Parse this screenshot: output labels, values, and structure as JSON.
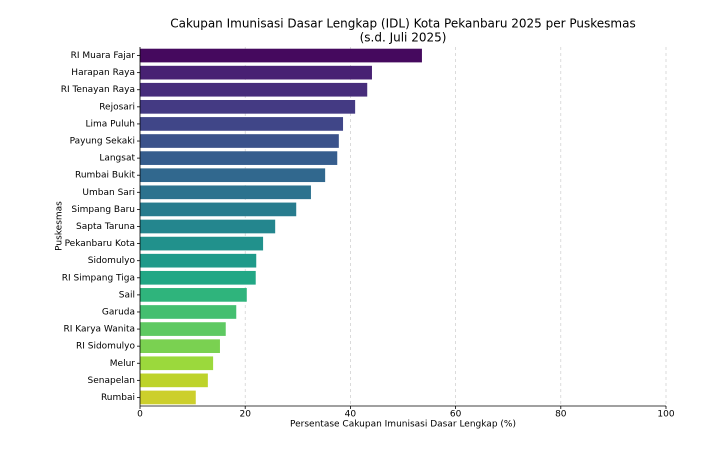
{
  "chart_data": {
    "type": "barh",
    "title": "Cakupan Imunisasi Dasar Lengkap (IDL) Kota Pekanbaru 2025 per Puskesmas",
    "subtitle": "(s.d. Juli 2025)",
    "x_label": "Persentase Cakupan Imunisasi Dasar Lengkap (%)",
    "y_label": "Puskesmas",
    "categories": [
      "RI Muara Fajar",
      "Harapan Raya",
      "RI Tenayan Raya",
      "Rejosari",
      "Lima Puluh",
      "Payung Sekaki",
      "Langsat",
      "Rumbai Bukit",
      "Umban Sari",
      "Simpang Baru",
      "Sapta Taruna",
      "Pekanbaru Kota",
      "Sidomulyo",
      "RI Simpang Tiga",
      "Sail",
      "Garuda",
      "RI Karya Wanita",
      "RI Sidomulyo",
      "Melur",
      "Senapelan",
      "Rumbai"
    ],
    "values": [
      53.6,
      44.1,
      43.2,
      40.9,
      38.6,
      37.8,
      37.5,
      35.2,
      32.5,
      29.7,
      25.7,
      23.4,
      22.1,
      22.0,
      20.3,
      18.3,
      16.3,
      15.2,
      13.9,
      12.9,
      10.6
    ],
    "colors": [
      "#45095e",
      "#482173",
      "#472d7b",
      "#443a83",
      "#404688",
      "#3b528b",
      "#365d8d",
      "#31688e",
      "#2c728e",
      "#287c8e",
      "#24868e",
      "#21918c",
      "#1f9a8a",
      "#22a785",
      "#2fb47c",
      "#44bf70",
      "#5ec962",
      "#7ad151",
      "#9bd93c",
      "#bdd32a",
      "#cccf2c"
    ],
    "xlim": [
      0,
      100
    ],
    "xticks": [
      0,
      20,
      40,
      60,
      80,
      100
    ],
    "grid": true
  }
}
